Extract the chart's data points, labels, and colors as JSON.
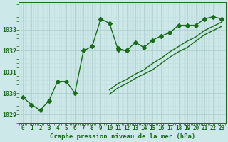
{
  "title": "Graphe pression niveau de la mer (hPa)",
  "x": [
    0,
    1,
    2,
    3,
    4,
    5,
    6,
    7,
    8,
    9,
    10,
    11,
    12,
    13,
    14,
    15,
    16,
    17,
    18,
    19,
    20,
    21,
    22,
    23
  ],
  "series1": [
    1029.8,
    1029.45,
    1029.2,
    1029.65,
    1030.55,
    1030.55,
    1030.0,
    1032.0,
    1032.2,
    1033.5,
    1033.3,
    1032.05,
    1032.0,
    null,
    null,
    null,
    null,
    null,
    null,
    null,
    null,
    null,
    null,
    null
  ],
  "series2": [
    null,
    null,
    null,
    null,
    null,
    null,
    null,
    null,
    null,
    null,
    null,
    1032.1,
    1032.0,
    1032.4,
    1032.15,
    1032.5,
    1032.7,
    1032.85,
    1033.2,
    1033.2,
    1033.2,
    1033.5,
    1033.6,
    1033.5
  ],
  "series3": [
    null,
    null,
    null,
    null,
    null,
    null,
    null,
    null,
    null,
    null,
    1030.15,
    1030.45,
    1030.65,
    1030.9,
    1031.1,
    1031.4,
    1031.65,
    1031.95,
    1032.2,
    1032.45,
    1032.65,
    1032.95,
    1033.15,
    1033.35
  ],
  "series4": [
    null,
    null,
    null,
    null,
    null,
    null,
    null,
    null,
    null,
    null,
    1029.95,
    1030.25,
    1030.45,
    1030.7,
    1030.9,
    1031.1,
    1031.4,
    1031.7,
    1031.95,
    1032.15,
    1032.45,
    1032.75,
    1032.95,
    1033.15
  ],
  "ylim": [
    1028.6,
    1034.3
  ],
  "yticks": [
    1029,
    1030,
    1031,
    1032,
    1033
  ],
  "xlabel_ticks": [
    "0",
    "1",
    "2",
    "3",
    "4",
    "5",
    "6",
    "7",
    "8",
    "9",
    "10",
    "11",
    "12",
    "13",
    "14",
    "15",
    "16",
    "17",
    "18",
    "19",
    "20",
    "21",
    "22",
    "23"
  ],
  "bg_color": "#cce8e8",
  "grid_major_color": "#b0d0d0",
  "grid_minor_color": "#c0dcdc",
  "line_color": "#1a6b1a",
  "text_color": "#1a6b1a",
  "bottom_bar_color": "#1a6b1a",
  "title_text_color": "#cce8e8",
  "line_width": 1.0,
  "marker_size": 3.0,
  "tick_fontsize": 5.5,
  "title_fontsize": 6.5,
  "ytick_fontsize": 6.0
}
